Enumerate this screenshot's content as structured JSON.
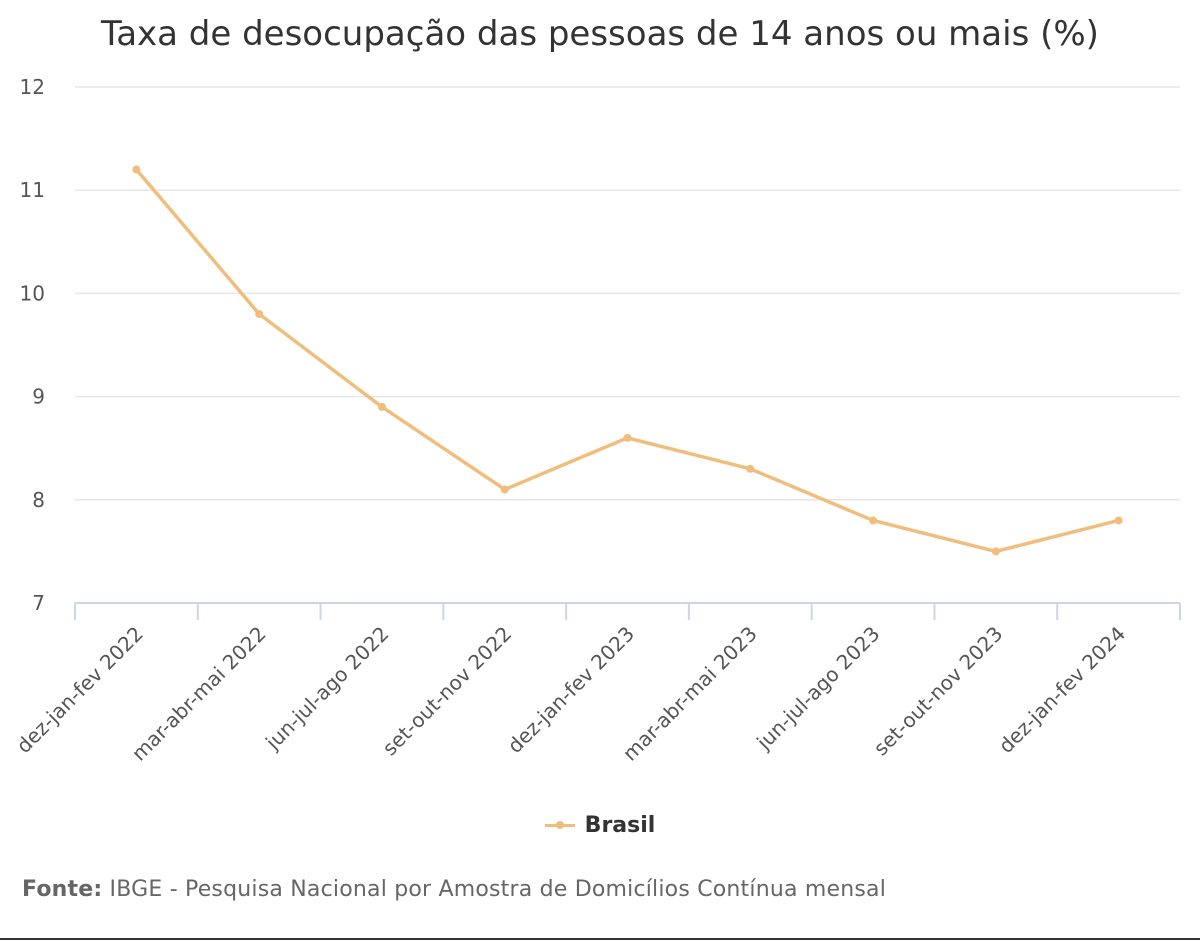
{
  "chart_data": {
    "type": "line",
    "title": "Taxa de desocupação das pessoas de 14 anos ou mais (%)",
    "categories": [
      "dez-jan-fev 2022",
      "mar-abr-mai 2022",
      "jun-jul-ago 2022",
      "set-out-nov 2022",
      "dez-jan-fev 2023",
      "mar-abr-mai 2023",
      "jun-jul-ago 2023",
      "set-out-nov 2023",
      "dez-jan-fev 2024"
    ],
    "series": [
      {
        "name": "Brasil",
        "values": [
          11.2,
          9.8,
          8.9,
          8.1,
          8.6,
          8.3,
          7.8,
          7.5,
          7.8
        ],
        "color": "#F0BE7C"
      }
    ],
    "ylim": [
      7,
      12
    ],
    "yticks": [
      7,
      8,
      9,
      10,
      11,
      12
    ],
    "xlabel": "",
    "ylabel": "",
    "grid": true,
    "legend_position": "bottom"
  },
  "source": {
    "label": "Fonte:",
    "text": " IBGE - Pesquisa Nacional por Amostra de Domicílios Contínua mensal"
  },
  "colors": {
    "grid": "#e6e6e6",
    "axis": "#ccd6eb",
    "series": "#F0BE7C"
  }
}
